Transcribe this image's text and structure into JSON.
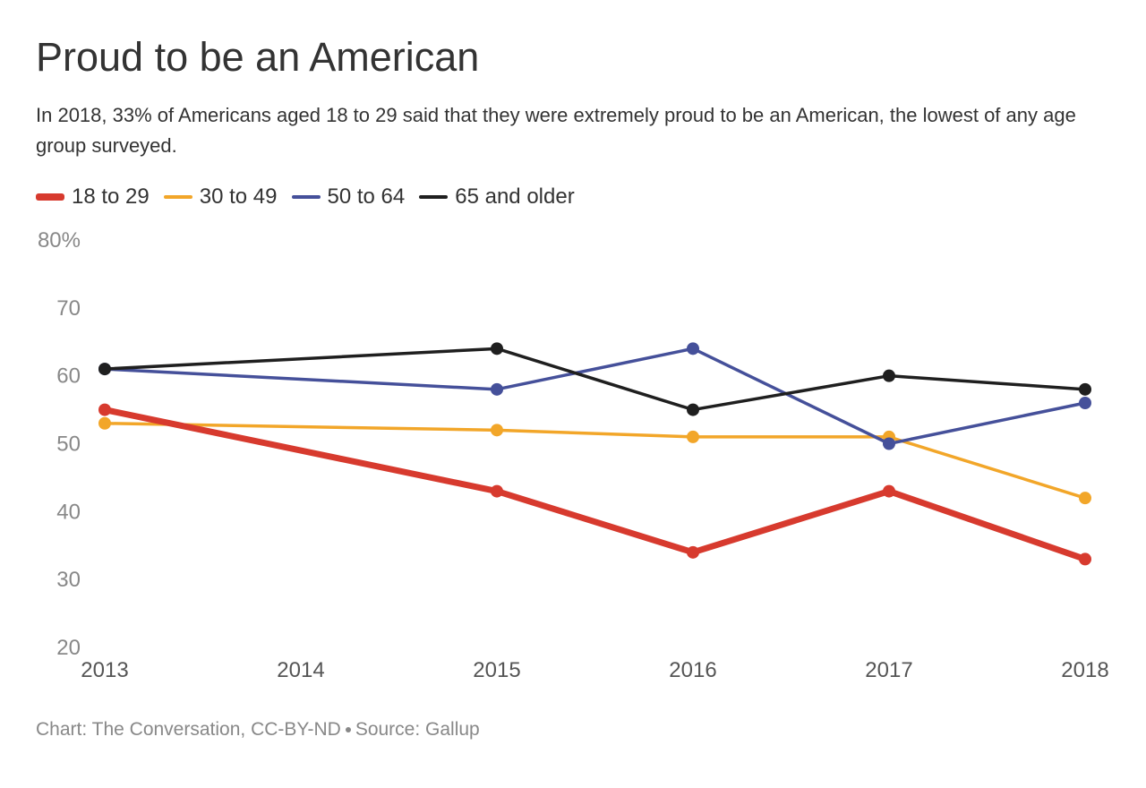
{
  "title": "Proud to be an American",
  "subtitle": "In 2018, 33% of Americans aged 18 to 29 said that they were extremely proud to be an American, the lowest of any age group surveyed.",
  "footer": {
    "credit": "Chart: The Conversation, CC-BY-ND",
    "source": "Source: Gallup"
  },
  "chart_data": {
    "type": "line",
    "title": "Proud to be an American",
    "xlabel": "",
    "ylabel": "",
    "x": [
      2013,
      2014,
      2015,
      2016,
      2017,
      2018
    ],
    "x_tick_labels": [
      "2013",
      "2014",
      "2015",
      "2016",
      "2017",
      "2018"
    ],
    "ylim": [
      20,
      80
    ],
    "y_ticks": [
      20,
      30,
      40,
      50,
      60,
      70,
      80
    ],
    "y_tick_labels": [
      "20",
      "30",
      "40",
      "50",
      "60",
      "70",
      "80%"
    ],
    "grid": false,
    "legend_position": "top-left",
    "series": [
      {
        "name": "18 to 29",
        "color": "#d73a2e",
        "x": [
          2013,
          2015,
          2016,
          2017,
          2018
        ],
        "values": [
          55,
          43,
          34,
          43,
          33
        ]
      },
      {
        "name": "30 to 49",
        "color": "#f2a629",
        "x": [
          2013,
          2015,
          2016,
          2017,
          2018
        ],
        "values": [
          53,
          52,
          51,
          51,
          42
        ]
      },
      {
        "name": "50 to 64",
        "color": "#45509a",
        "x": [
          2013,
          2015,
          2016,
          2017,
          2018
        ],
        "values": [
          61,
          58,
          64,
          50,
          56
        ]
      },
      {
        "name": "65 and older",
        "color": "#1f1f1f",
        "x": [
          2013,
          2015,
          2016,
          2017,
          2018
        ],
        "values": [
          61,
          64,
          55,
          60,
          58
        ]
      }
    ]
  }
}
